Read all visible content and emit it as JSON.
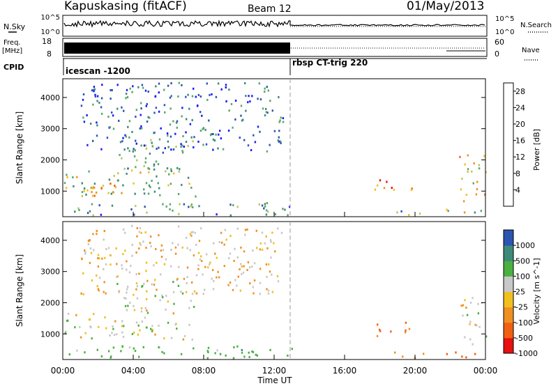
{
  "header": {
    "station": "Kapuskasing (fitACF)",
    "beam": "Beam 12",
    "date": "01/May/2013"
  },
  "noise_panel": {
    "left_label": "N.Sky",
    "right_label": "N.Search",
    "left_ticks": [
      "10^5",
      "10^0"
    ],
    "right_ticks": [
      "10^5",
      "10^0"
    ]
  },
  "freq_panel": {
    "left_label_1": "Freq.",
    "left_label_2": "[MHz]",
    "right_label": "Nave",
    "left_ticks": [
      "18",
      "8"
    ],
    "right_ticks": [
      "60",
      "0"
    ]
  },
  "cpid_panel": {
    "label": "CPID",
    "modes": [
      {
        "name": "icescan -1200",
        "start_hour": 0.0
      },
      {
        "name": "rbsp CT-trig 220",
        "start_hour": 13.0
      }
    ]
  },
  "x_axis": {
    "label": "Time UT",
    "ticks": [
      "00:00",
      "04:00",
      "08:00",
      "12:00",
      "16:00",
      "20:00",
      "00:00"
    ]
  },
  "colors": {
    "power": [
      "#1a1aff",
      "#2b55b0",
      "#3d8a7a",
      "#5aa86a",
      "#b8c85a",
      "#f0c020",
      "#f09020",
      "#f06010",
      "#e81010"
    ],
    "velocity": [
      "#e81010",
      "#f06010",
      "#f09020",
      "#f0c020",
      "#c8c8c8",
      "#4ab040",
      "#3d8a7a",
      "#2b55b0"
    ]
  },
  "chart_data": [
    {
      "type": "heatmap",
      "title": "",
      "ylabel": "Slant Range [km]",
      "xlabel": "",
      "xlim": [
        0,
        24
      ],
      "ylim": [
        180,
        4600
      ],
      "yticks": [
        "1000",
        "2000",
        "3000",
        "4000"
      ],
      "colorbar": {
        "label": "Power [dB]",
        "ticks": [
          "4",
          "8",
          "12",
          "16",
          "20",
          "24",
          "28"
        ],
        "range": [
          0,
          30
        ]
      },
      "regions": [
        {
          "t0": 0.0,
          "t1": 7.5,
          "r0": 850,
          "r1": 1700,
          "value": 14
        },
        {
          "t0": 0.5,
          "t1": 3.0,
          "r0": 700,
          "r1": 1300,
          "value": 20
        },
        {
          "t0": 3.0,
          "t1": 7.5,
          "r0": 1700,
          "r1": 2700,
          "value": 10
        },
        {
          "t0": 0.0,
          "t1": 13.0,
          "r0": 250,
          "r1": 650,
          "value": 9
        },
        {
          "t0": 1.0,
          "t1": 12.5,
          "r0": 2300,
          "r1": 4500,
          "value": 6
        },
        {
          "t0": 17.5,
          "t1": 19.8,
          "r0": 950,
          "r1": 1400,
          "value": 22
        },
        {
          "t0": 18.5,
          "t1": 20.5,
          "r0": 250,
          "r1": 450,
          "value": 12
        },
        {
          "t0": 21.5,
          "t1": 24.0,
          "r0": 250,
          "r1": 450,
          "value": 14
        },
        {
          "t0": 22.5,
          "t1": 24.0,
          "r0": 700,
          "r1": 2200,
          "value": 18
        }
      ]
    },
    {
      "type": "heatmap",
      "title": "",
      "ylabel": "Slant Range [km]",
      "xlabel": "Time UT",
      "xlim": [
        0,
        24
      ],
      "ylim": [
        180,
        4600
      ],
      "yticks": [
        "1000",
        "2000",
        "3000",
        "4000"
      ],
      "colorbar": {
        "label": "Velocity [m s^-1]",
        "ticks": [
          "1000",
          "500",
          "100",
          "25",
          "-25",
          "-100",
          "-500",
          "-1000"
        ]
      },
      "regions": [
        {
          "t0": 0.0,
          "t1": 7.5,
          "r0": 850,
          "r1": 1700,
          "value": 0
        },
        {
          "t0": 3.0,
          "t1": 7.5,
          "r0": 1700,
          "r1": 2700,
          "value": 0
        },
        {
          "t0": 0.0,
          "t1": 13.0,
          "r0": 250,
          "r1": 650,
          "value": 150
        },
        {
          "t0": 1.0,
          "t1": 12.5,
          "r0": 2300,
          "r1": 4500,
          "value": -50
        },
        {
          "t0": 17.5,
          "t1": 19.8,
          "r0": 950,
          "r1": 1400,
          "value": -300
        },
        {
          "t0": 18.5,
          "t1": 20.5,
          "r0": 250,
          "r1": 450,
          "value": -300
        },
        {
          "t0": 21.5,
          "t1": 24.0,
          "r0": 250,
          "r1": 450,
          "value": -300
        },
        {
          "t0": 22.5,
          "t1": 24.0,
          "r0": 700,
          "r1": 2200,
          "value": 0
        }
      ]
    }
  ]
}
